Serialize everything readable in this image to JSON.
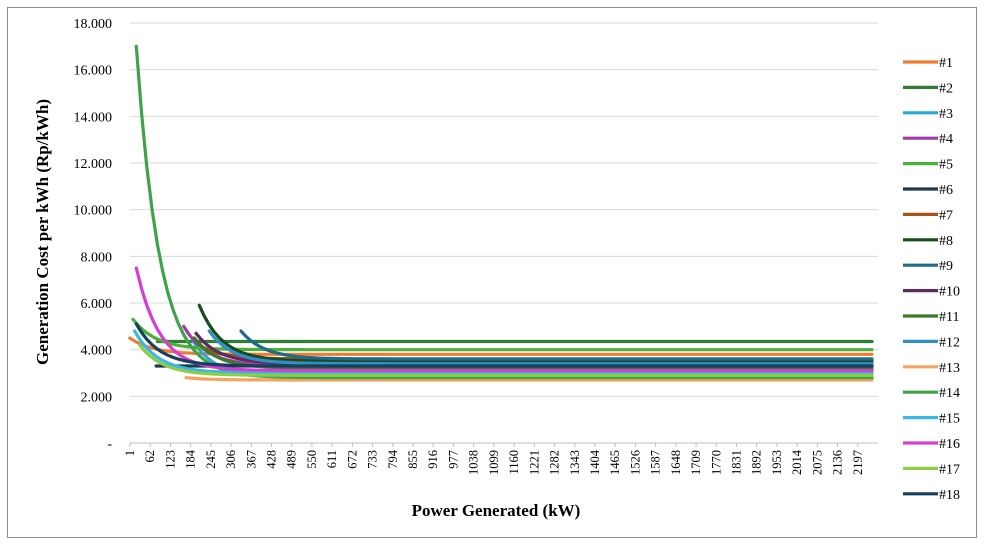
{
  "chart_data": {
    "type": "line",
    "title": "",
    "xlabel": "Power Generated (kW)",
    "ylabel": "Generation Cost per kWh (Rp/kWh)",
    "ylim": [
      0,
      18000
    ],
    "y_ticks": [
      0,
      2000,
      4000,
      6000,
      8000,
      10000,
      12000,
      14000,
      16000,
      18000
    ],
    "y_tick_labels": [
      "-",
      "2.000",
      "4.000",
      "6.000",
      "8.000",
      "10.000",
      "12.000",
      "14.000",
      "16.000",
      "18.000"
    ],
    "x_tick_labels": [
      "1",
      "62",
      "123",
      "184",
      "245",
      "306",
      "367",
      "428",
      "489",
      "550",
      "611",
      "672",
      "733",
      "794",
      "855",
      "916",
      "977",
      "1038",
      "1099",
      "1160",
      "1221",
      "1282",
      "1343",
      "1404",
      "1465",
      "1526",
      "1587",
      "1648",
      "1709",
      "1770",
      "1831",
      "1892",
      "1953",
      "2014",
      "2075",
      "2136",
      "2197"
    ],
    "xlim": [
      1,
      2258
    ],
    "grid": "horizontal",
    "legend_position": "right",
    "series": [
      {
        "name": "#1",
        "color": "#ED7D31",
        "x_start": 0,
        "y_start": 4500,
        "y_end": 3800
      },
      {
        "name": "#2",
        "color": "#2E7D32",
        "x_start": 84,
        "y_start": 4350,
        "y_end": 4350
      },
      {
        "name": "#3",
        "color": "#29A6D6",
        "x_start": 190,
        "y_start": 4400,
        "y_end": 2800
      },
      {
        "name": "#4",
        "color": "#A23CA6",
        "x_start": 163,
        "y_start": 5000,
        "y_end": 3300
      },
      {
        "name": "#5",
        "color": "#4CAF3A",
        "x_start": 10,
        "y_start": 5300,
        "y_end": 4000
      },
      {
        "name": "#6",
        "color": "#1F3A4D",
        "x_start": 80,
        "y_start": 3300,
        "y_end": 3300
      },
      {
        "name": "#7",
        "color": "#A5521B",
        "x_start": 220,
        "y_start": 4100,
        "y_end": 3600
      },
      {
        "name": "#8",
        "color": "#1B4A1F",
        "x_start": 210,
        "y_start": 5900,
        "y_end": 3500
      },
      {
        "name": "#9",
        "color": "#1E6A8A",
        "x_start": 336,
        "y_start": 4800,
        "y_end": 3600
      },
      {
        "name": "#10",
        "color": "#5E2A61",
        "x_start": 200,
        "y_start": 4700,
        "y_end": 3400
      },
      {
        "name": "#11",
        "color": "#3A7A2A",
        "x_start": 195,
        "y_start": 4500,
        "y_end": 3200
      },
      {
        "name": "#12",
        "color": "#2E8FC9",
        "x_start": 240,
        "y_start": 4800,
        "y_end": 3400
      },
      {
        "name": "#13",
        "color": "#F4A460",
        "x_start": 170,
        "y_start": 2800,
        "y_end": 2700
      },
      {
        "name": "#14",
        "color": "#3EA34A",
        "x_start": 20,
        "y_start": 17000,
        "y_end": 2800
      },
      {
        "name": "#15",
        "color": "#38B7E8",
        "x_start": 15,
        "y_start": 4800,
        "y_end": 3000
      },
      {
        "name": "#16",
        "color": "#D43ED4",
        "x_start": 20,
        "y_start": 7500,
        "y_end": 3100
      },
      {
        "name": "#17",
        "color": "#8BCF45",
        "x_start": 30,
        "y_start": 4200,
        "y_end": 2900
      },
      {
        "name": "#18",
        "color": "#183E5C",
        "x_start": 20,
        "y_start": 5100,
        "y_end": 3300
      }
    ]
  }
}
